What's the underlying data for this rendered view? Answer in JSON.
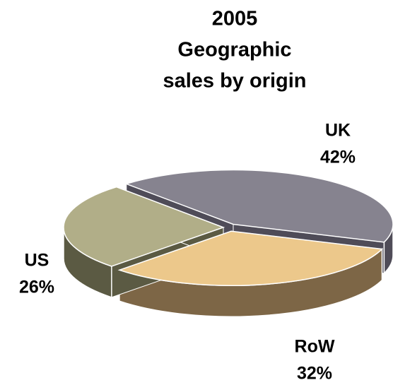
{
  "chart_data": {
    "type": "pie",
    "title": [
      "2005",
      "Geographic",
      "sales by origin"
    ],
    "categories": [
      "UK",
      "RoW",
      "US"
    ],
    "values": [
      42,
      32,
      26
    ],
    "value_labels": [
      "42%",
      "32%",
      "26%"
    ],
    "colors": [
      "#86838f",
      "#ecc88b",
      "#b1ae88"
    ],
    "side_colors": [
      "#4f4c58",
      "#7d6646",
      "#5b5a43"
    ]
  }
}
